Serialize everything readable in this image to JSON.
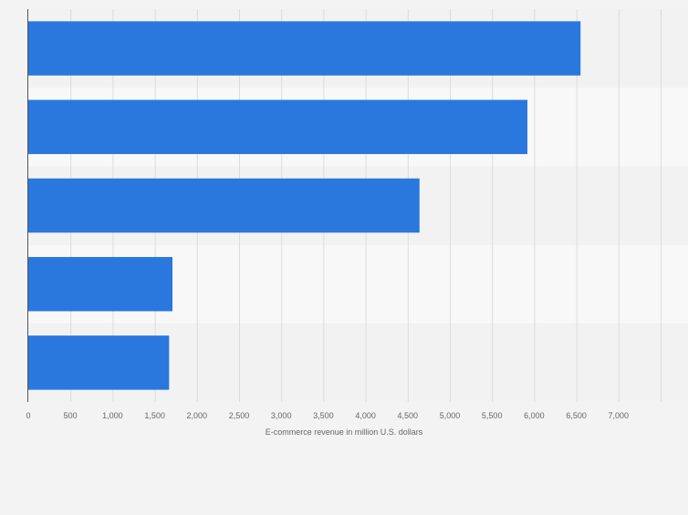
{
  "chart_data": {
    "type": "bar",
    "orientation": "horizontal",
    "categories": [
      "",
      "",
      "",
      "",
      ""
    ],
    "values": [
      6550,
      5920,
      4640,
      1710,
      1670
    ],
    "xlabel": "E-commerce revenue in million U.S. dollars",
    "ylabel": "",
    "xlim": [
      0,
      7500
    ],
    "ticks": [
      0,
      500,
      1000,
      1500,
      2000,
      2500,
      3000,
      3500,
      4000,
      4500,
      5000,
      5500,
      6000,
      6500,
      7000
    ],
    "tick_labels": [
      "0",
      "500",
      "1,000",
      "1,500",
      "2,000",
      "2,500",
      "3,000",
      "3,500",
      "4,000",
      "4,500",
      "5,000",
      "5,500",
      "6,000",
      "6,500",
      "7,000"
    ],
    "grid": true,
    "legend": "none",
    "colors": {
      "bar": "#2a78de",
      "band_dark": "#f2f2f2",
      "band_light": "#f8f8f8",
      "grid": "#dcdcdc",
      "axis": "#555555",
      "text": "#666666"
    }
  }
}
